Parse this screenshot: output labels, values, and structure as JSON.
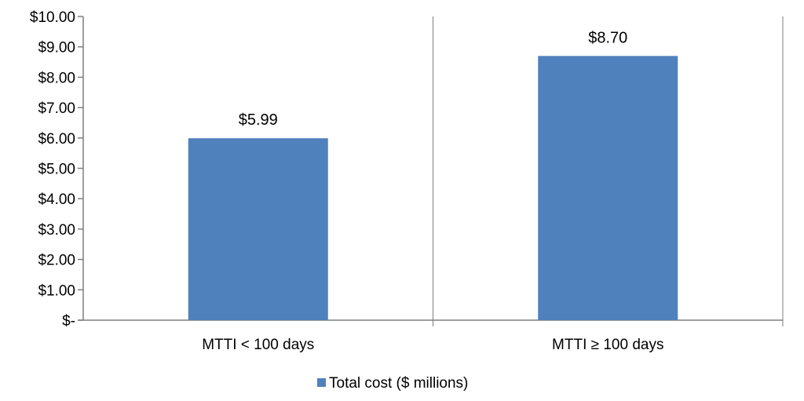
{
  "chart_data": {
    "type": "bar",
    "categories": [
      "MTTI < 100 days",
      "MTTI ≥ 100 days"
    ],
    "series": [
      {
        "name": "Total cost ($ millions)",
        "values": [
          5.99,
          8.7
        ],
        "color": "#4f81bd"
      }
    ],
    "data_labels": [
      "$5.99",
      "$8.70"
    ],
    "y_ticks": [
      0,
      1,
      2,
      3,
      4,
      5,
      6,
      7,
      8,
      9,
      10
    ],
    "y_tick_labels": [
      "$-",
      "$1.00",
      "$2.00",
      "$3.00",
      "$4.00",
      "$5.00",
      "$6.00",
      "$7.00",
      "$8.00",
      "$9.00",
      "$10.00"
    ],
    "ylim": [
      0,
      10
    ],
    "title": "",
    "xlabel": "",
    "ylabel": "",
    "grid": false,
    "legend_position": "bottom"
  }
}
